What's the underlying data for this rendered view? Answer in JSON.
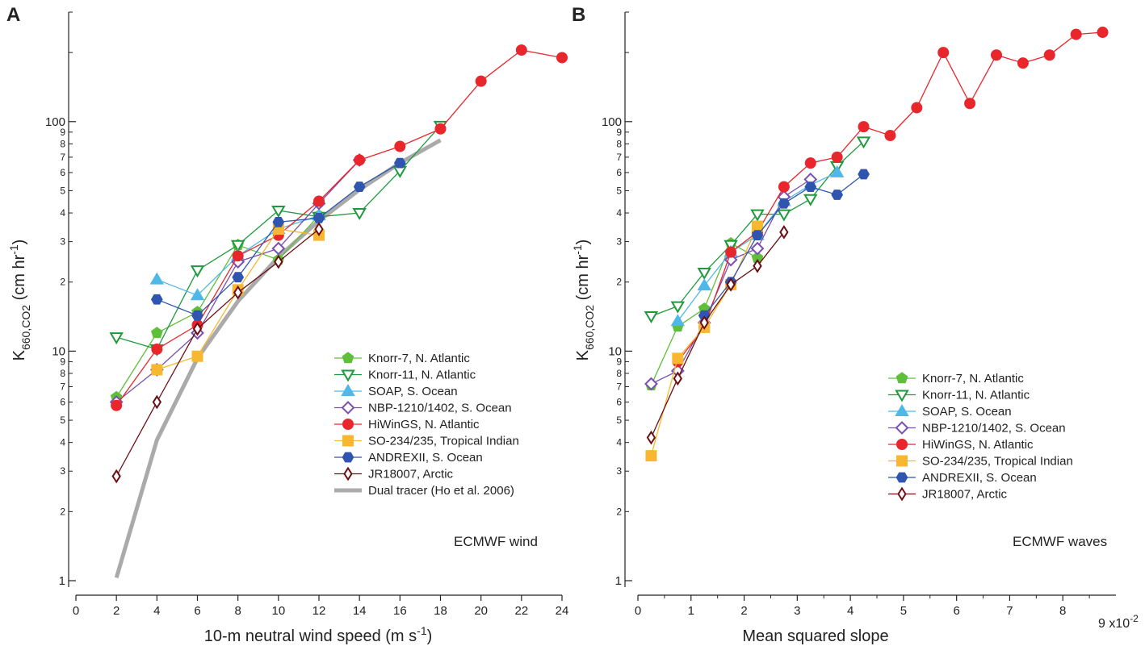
{
  "colors": {
    "knorr7": "#5fbf3a",
    "knorr11": "#1e9a3c",
    "soap": "#4fb8e8",
    "nbp": "#7a50b0",
    "hiwings": "#e8262c",
    "so234": "#f8b730",
    "andrex": "#2f55b0",
    "jr18007": "#6b0f14",
    "dual": "#aaaaaa",
    "axis": "#222222"
  },
  "chart_data": [
    {
      "panel_label": "A",
      "type": "line",
      "scale_y": "log",
      "title": "",
      "xlabel": "10-m neutral wind speed (m s",
      "xlabel_sup": "-1",
      "xlabel_end": ")",
      "ylabel": "K",
      "ylabel_sub": "660,CO2",
      "ylabel_unit": " (cm hr",
      "ylabel_sup": "-1",
      "ylabel_end": ")",
      "xlim": [
        0,
        24
      ],
      "ylim": [
        1,
        300
      ],
      "xticks": [
        "0",
        "2",
        "4",
        "6",
        "8",
        "10",
        "12",
        "14",
        "16",
        "18",
        "20",
        "22",
        "24"
      ],
      "yticks_major": [
        "1",
        "10",
        "100"
      ],
      "yticks_minor": [
        "2",
        "3",
        "4",
        "5",
        "6",
        "7",
        "8",
        "9"
      ],
      "annotation": "ECMWF wind",
      "legend_position": "bottom-right",
      "series": [
        {
          "key": "knorr7",
          "name": "Knorr-7, N. Atlantic",
          "marker": "pentagon",
          "filled": true,
          "x": [
            2,
            4,
            6,
            8,
            10,
            12
          ],
          "y": [
            6.3,
            12,
            14.8,
            29,
            25,
            39
          ]
        },
        {
          "key": "knorr11",
          "name": "Knorr-11, N. Atlantic",
          "marker": "triangle-down",
          "filled": false,
          "x": [
            2,
            4,
            6,
            8,
            10,
            12,
            14,
            16,
            18
          ],
          "y": [
            11.5,
            10.2,
            22.5,
            29,
            41,
            38.5,
            40,
            61,
            96
          ]
        },
        {
          "key": "soap",
          "name": "SOAP, S. Ocean",
          "marker": "triangle-up",
          "filled": true,
          "x": [
            4,
            6,
            8,
            10,
            12
          ],
          "y": [
            20.5,
            17.5,
            26,
            34,
            39
          ]
        },
        {
          "key": "nbp",
          "name": "NBP-1210/1402, S. Ocean",
          "marker": "diamond",
          "filled": false,
          "x": [
            2,
            4,
            6,
            8,
            10,
            12,
            14
          ],
          "y": [
            6,
            8.3,
            12,
            24.5,
            28,
            44,
            68
          ]
        },
        {
          "key": "hiwings",
          "name": "HiWinGS, N. Atlantic",
          "marker": "circle",
          "filled": true,
          "x": [
            2,
            4,
            6,
            8,
            10,
            12,
            14,
            16,
            18,
            20,
            22,
            24
          ],
          "y": [
            5.8,
            10.2,
            13,
            26,
            32,
            45,
            68,
            78,
            93,
            150,
            205,
            190
          ]
        },
        {
          "key": "so234",
          "name": "SO-234/235, Tropical Indian",
          "marker": "square",
          "filled": true,
          "x": [
            4,
            6,
            8,
            10,
            12
          ],
          "y": [
            8.3,
            9.5,
            18.5,
            34,
            32
          ]
        },
        {
          "key": "andrex",
          "name": "ANDREXII, S. Ocean",
          "marker": "hexagon",
          "filled": true,
          "x": [
            4,
            6,
            8,
            10,
            12,
            14,
            16
          ],
          "y": [
            16.8,
            14.3,
            21,
            36.5,
            38,
            52,
            66
          ]
        },
        {
          "key": "jr18007",
          "name": "JR18007, Arctic",
          "marker": "thin-diamond",
          "filled": false,
          "x": [
            2,
            4,
            6,
            8,
            10,
            12
          ],
          "y": [
            2.85,
            6,
            12.5,
            18,
            24.5,
            34
          ]
        },
        {
          "key": "dual",
          "name": "Dual tracer (Ho et al. 2006)",
          "marker": "none",
          "filled": false,
          "thick": true,
          "x": [
            2,
            4,
            6,
            8,
            10,
            12,
            14,
            16,
            18
          ],
          "y": [
            1.03,
            4.1,
            9.3,
            16.5,
            25.7,
            37,
            50.5,
            66,
            83
          ]
        }
      ]
    },
    {
      "panel_label": "B",
      "type": "line",
      "scale_y": "log",
      "title": "",
      "xlabel": "Mean squared slope",
      "xlabel_sup": "",
      "xlabel_end": "",
      "xscale_text": "9 x10",
      "xscale_sup": "-2",
      "ylabel": "K",
      "ylabel_sub": "660,CO2",
      "ylabel_unit": " (cm hr",
      "ylabel_sup": "-1",
      "ylabel_end": ")",
      "xlim": [
        0,
        9
      ],
      "ylim": [
        1,
        300
      ],
      "xticks": [
        "0",
        "1",
        "2",
        "3",
        "4",
        "5",
        "6",
        "7",
        "8"
      ],
      "yticks_major": [
        "1",
        "10",
        "100"
      ],
      "yticks_minor": [
        "2",
        "3",
        "4",
        "5",
        "6",
        "7",
        "8",
        "9"
      ],
      "annotation": "ECMWF waves",
      "legend_position": "bottom-right",
      "series": [
        {
          "key": "knorr7",
          "name": "Knorr-7, N. Atlantic",
          "marker": "pentagon",
          "filled": true,
          "x": [
            0.25,
            0.75,
            1.25,
            1.75,
            2.25
          ],
          "y": [
            7.1,
            12.8,
            15.3,
            29.5,
            25.5
          ]
        },
        {
          "key": "knorr11",
          "name": "Knorr-11, N. Atlantic",
          "marker": "triangle-down",
          "filled": false,
          "x": [
            0.25,
            0.75,
            1.25,
            1.75,
            2.25,
            2.75,
            3.25,
            3.75,
            4.25
          ],
          "y": [
            14.2,
            15.7,
            22,
            29,
            39.5,
            39.5,
            46,
            64,
            82
          ]
        },
        {
          "key": "soap",
          "name": "SOAP, S. Ocean",
          "marker": "triangle-up",
          "filled": true,
          "x": [
            0.75,
            1.25,
            1.75,
            2.25,
            2.75,
            3.25,
            3.75
          ],
          "y": [
            13.5,
            19.3,
            27,
            32,
            45,
            53,
            60
          ]
        },
        {
          "key": "nbp",
          "name": "NBP-1210/1402, S. Ocean",
          "marker": "diamond",
          "filled": false,
          "x": [
            0.25,
            0.75,
            1.25,
            1.75,
            2.25,
            2.75,
            3.25
          ],
          "y": [
            7.2,
            8.2,
            13.3,
            25,
            28,
            47,
            56
          ]
        },
        {
          "key": "hiwings",
          "name": "HiWinGS, N. Atlantic",
          "marker": "circle",
          "filled": true,
          "x": [
            0.75,
            1.25,
            1.75,
            2.25,
            2.75,
            3.25,
            3.75,
            4.25,
            4.75,
            5.25,
            5.75,
            6.25,
            6.75,
            7.25,
            7.75,
            8.25,
            8.75
          ],
          "y": [
            9,
            12.7,
            27,
            33,
            52,
            66,
            70,
            95,
            87,
            115,
            200,
            120,
            195,
            180,
            195,
            240,
            245
          ]
        },
        {
          "key": "so234",
          "name": "SO-234/235, Tropical Indian",
          "marker": "square",
          "filled": true,
          "x": [
            0.25,
            0.75,
            1.25,
            1.75,
            2.25
          ],
          "y": [
            3.5,
            9.3,
            12.7,
            19.5,
            35
          ]
        },
        {
          "key": "andrex",
          "name": "ANDREXII, S. Ocean",
          "marker": "hexagon",
          "filled": true,
          "x": [
            1.25,
            1.75,
            2.25,
            2.75,
            3.25,
            3.75,
            4.25
          ],
          "y": [
            14.3,
            20,
            32,
            44,
            52,
            48,
            59
          ]
        },
        {
          "key": "jr18007",
          "name": "JR18007, Arctic",
          "marker": "thin-diamond",
          "filled": false,
          "x": [
            0.25,
            0.75,
            1.25,
            1.75,
            2.25,
            2.75
          ],
          "y": [
            4.2,
            7.6,
            13.3,
            19.5,
            23.5,
            33
          ]
        }
      ]
    }
  ]
}
